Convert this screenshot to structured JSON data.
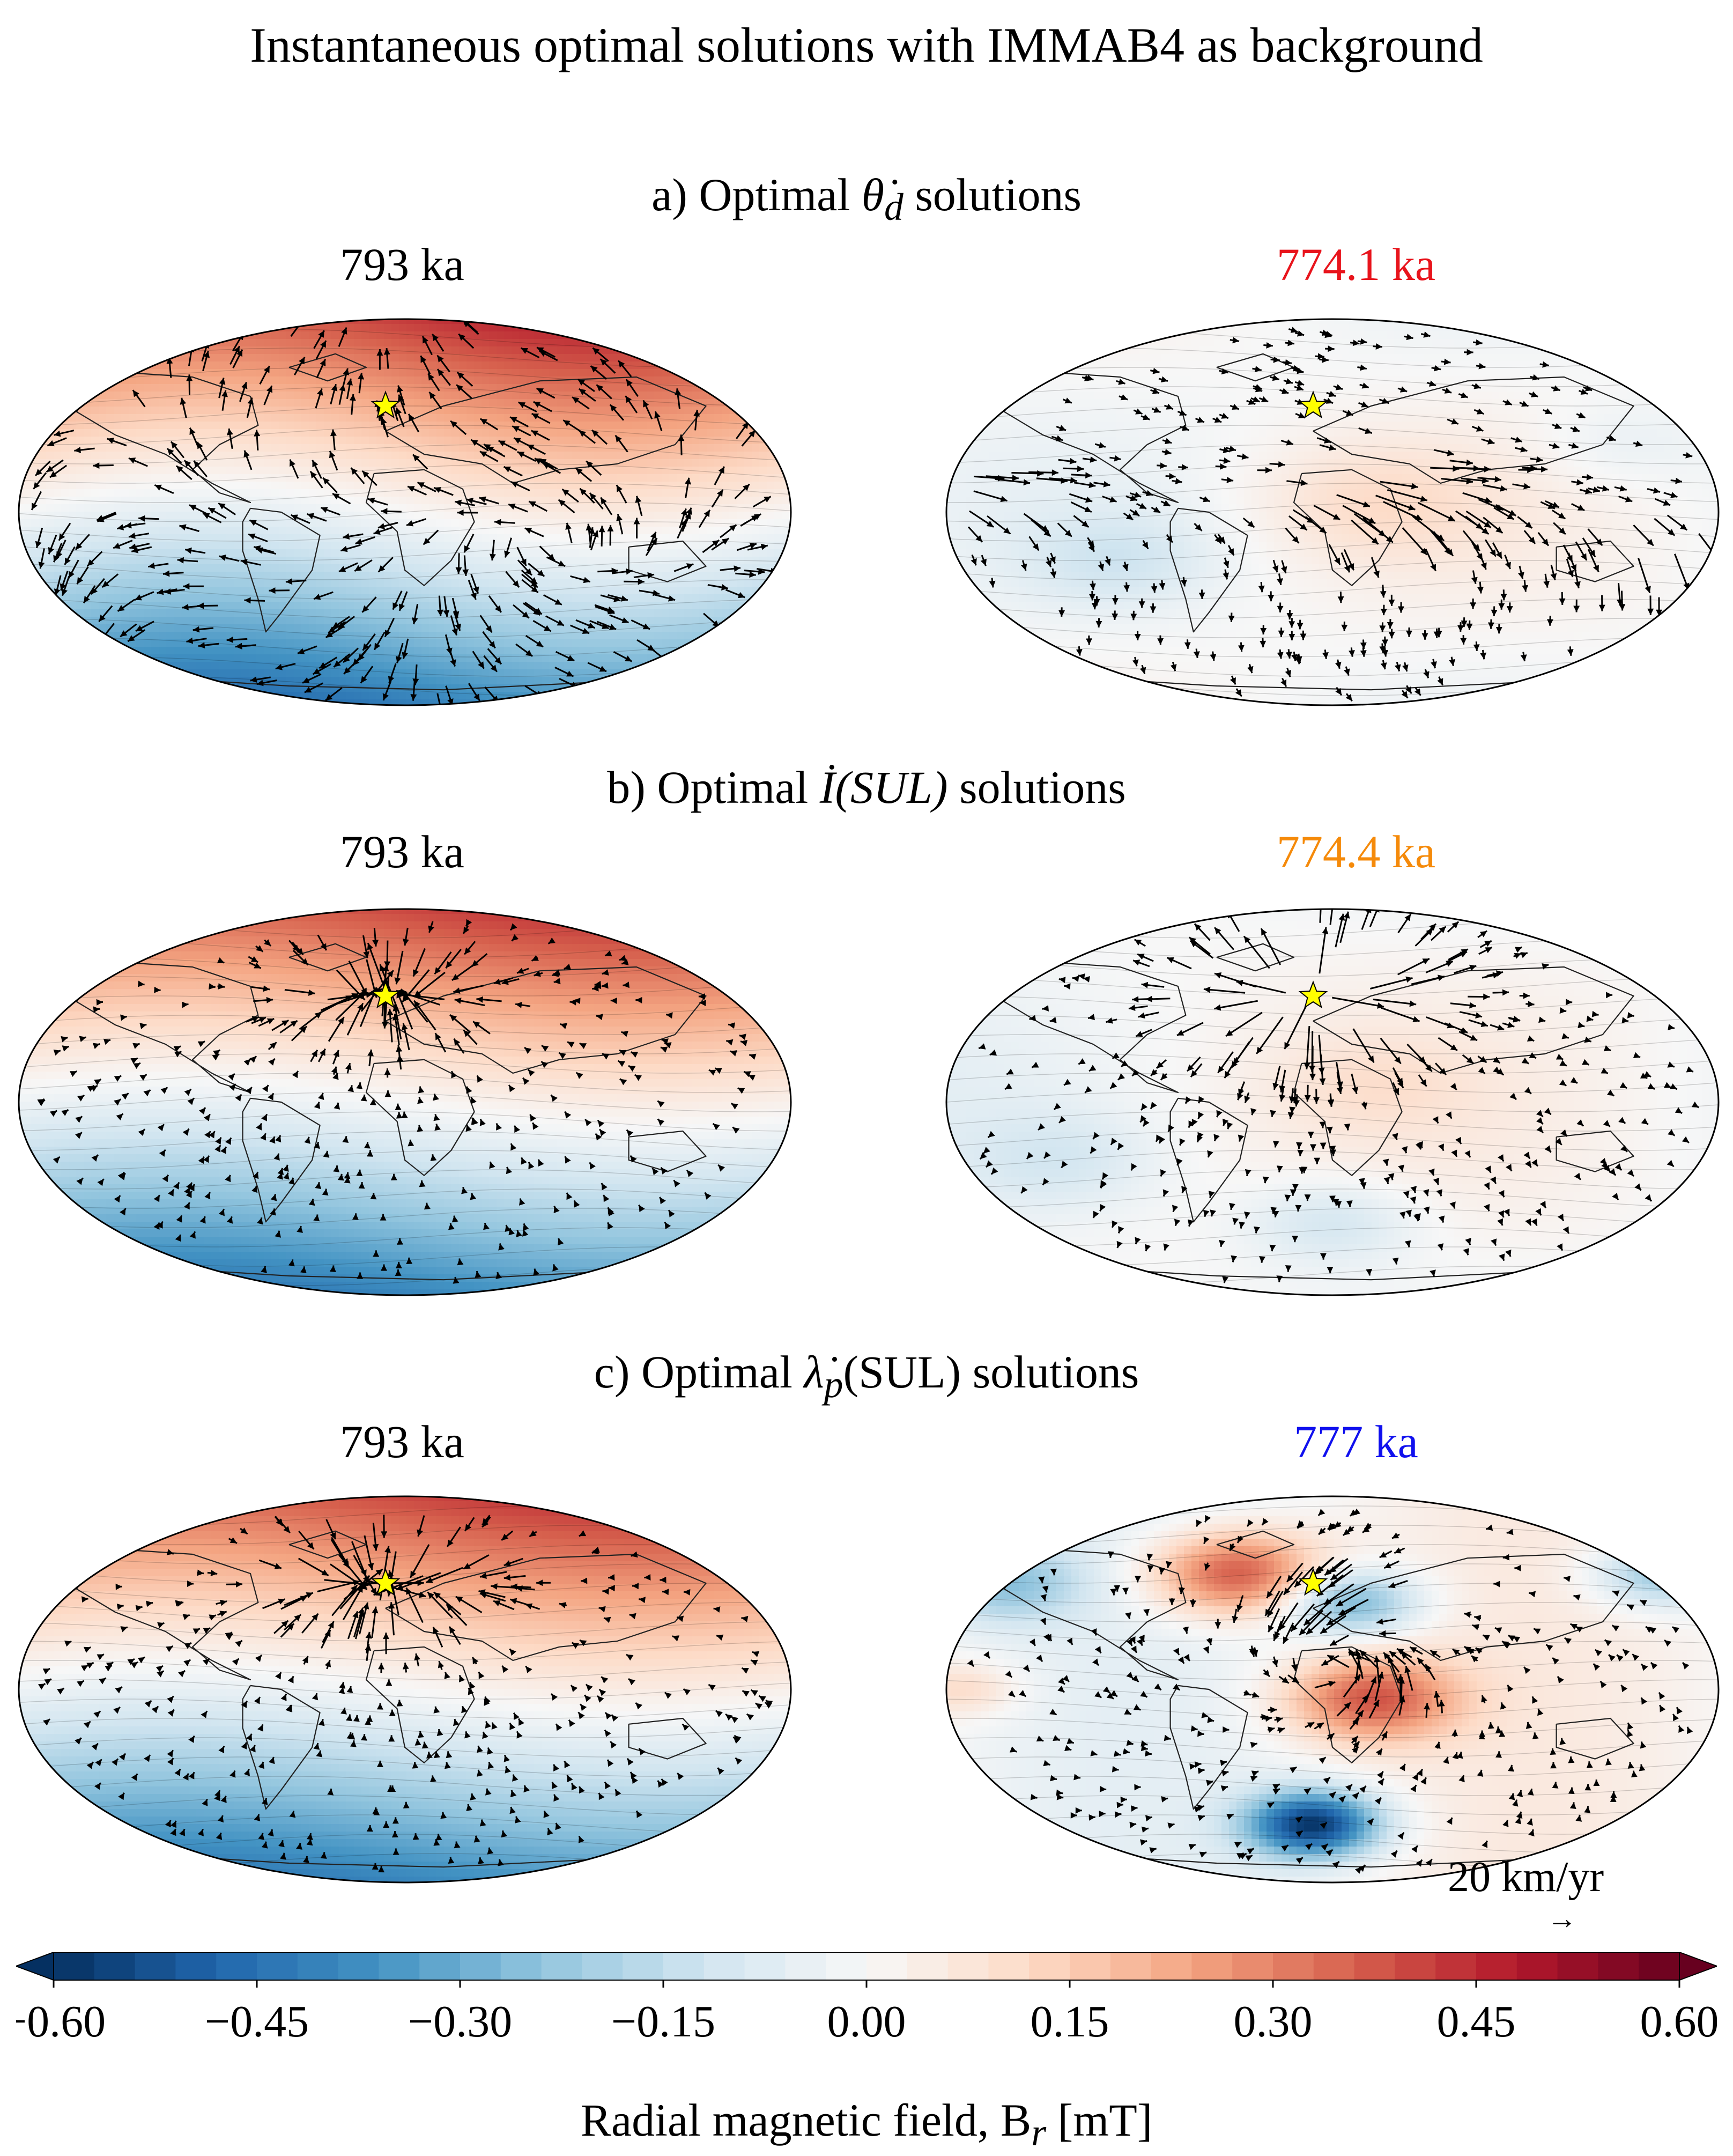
{
  "figure": {
    "title": "Instantaneous optimal solutions with IMMAB4 as background",
    "colorbar": {
      "label": "Radial magnetic field, B",
      "label_sub": "r",
      "label_unit": "[mT]",
      "ticks": [
        "−0.60",
        "−0.45",
        "−0.30",
        "−0.15",
        "0.00",
        "0.15",
        "0.30",
        "0.45",
        "0.60"
      ]
    },
    "scale": {
      "label": "20 km/yr",
      "arrow": "→"
    }
  },
  "rows": [
    {
      "label": "a) Optimal",
      "symbol": "θ̇",
      "symbol_sub": "d",
      "label_tail": "solutions",
      "left": {
        "title": "793 ka",
        "color": "#000000"
      },
      "right": {
        "title": "774.1 ka",
        "color": "#e8141c"
      }
    },
    {
      "label": "b) Optimal",
      "symbol": "İ",
      "symbol_args": "(SUL)",
      "label_tail": "solutions",
      "left": {
        "title": "793 ka",
        "color": "#000000"
      },
      "right": {
        "title": "774.4 ka",
        "color": "#f58a0a"
      }
    },
    {
      "label": "c) Optimal",
      "symbol": "λ̇",
      "symbol_sub": "p",
      "symbol_args": "(SUL)",
      "label_tail": "solutions",
      "left": {
        "title": "793 ka",
        "color": "#000000"
      },
      "right": {
        "title": "777 ka",
        "color": "#1010ee"
      }
    }
  ],
  "chart_data": {
    "type": "heatmap",
    "projection": "Mollweide",
    "colormap": "RdBu_r",
    "vlim": [
      -0.6,
      0.6
    ],
    "vmin_label": -0.6,
    "vmax_label": 0.6,
    "units": "mT",
    "marker": "yellow star (SUL site)",
    "colorbar_ticks": [
      -0.6,
      -0.45,
      -0.3,
      -0.15,
      0.0,
      0.15,
      0.3,
      0.45,
      0.6
    ],
    "panels": [
      {
        "row": "a",
        "epoch_ka": 793,
        "field": "axial dipole",
        "flow": "diffuse"
      },
      {
        "row": "a",
        "epoch_ka": 774.1,
        "field": "weak multipolar",
        "flow": "strong equatorial"
      },
      {
        "row": "b",
        "epoch_ka": 793,
        "field": "axial dipole",
        "flow": "converging at star"
      },
      {
        "row": "b",
        "epoch_ka": 774.4,
        "field": "weak multipolar",
        "flow": "diverging from star"
      },
      {
        "row": "c",
        "epoch_ka": 793,
        "field": "axial dipole",
        "flow": "converging at star"
      },
      {
        "row": "c",
        "epoch_ka": 777,
        "field": "strong multipolar",
        "flow": "patchy"
      }
    ]
  }
}
